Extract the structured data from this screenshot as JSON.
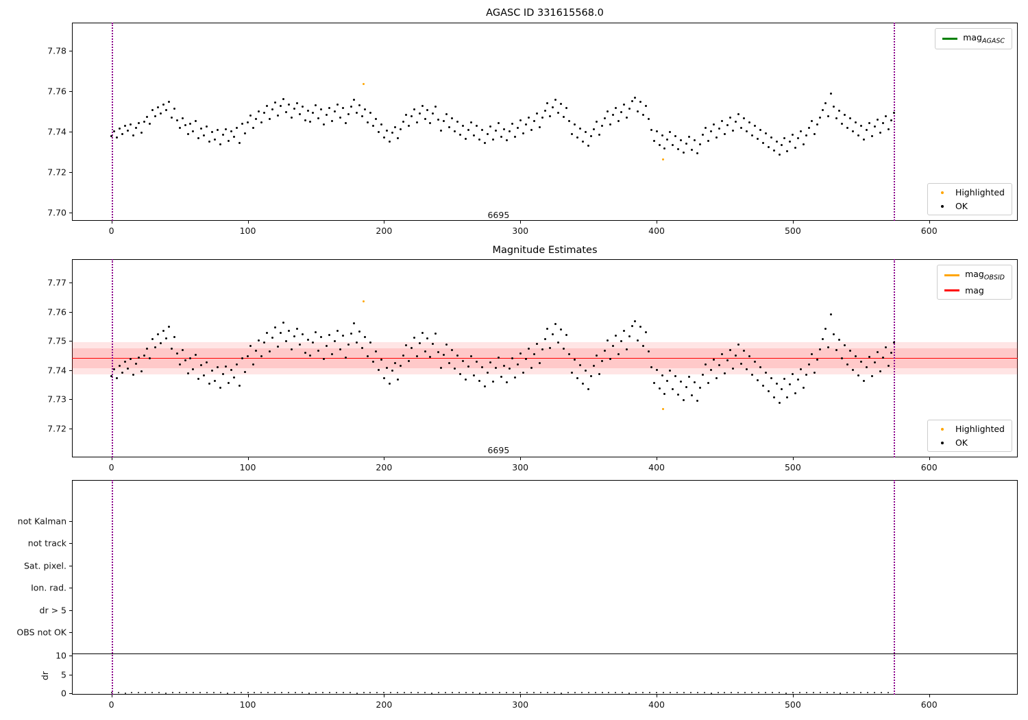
{
  "chart_data": [
    {
      "type": "scatter",
      "title": "AGASC ID 331615568.0",
      "xlim": [
        -29,
        665
      ],
      "ylim": [
        7.696,
        7.794
      ],
      "xticks": [
        0,
        100,
        200,
        300,
        400,
        500,
        600
      ],
      "yticks": [
        7.7,
        7.72,
        7.74,
        7.76,
        7.78
      ],
      "ytick_decimals": 2,
      "vlines": {
        "x": [
          0,
          574
        ],
        "color": "#8b008b",
        "style": "dotted"
      },
      "annotation": {
        "text": "6695",
        "x": 284,
        "y": 7.699
      },
      "series": [
        {
          "name": "OK",
          "marker": "dot",
          "color": "#000000",
          "data": "shared_scatter"
        },
        {
          "name": "Highlighted",
          "marker": "dot",
          "color": "#ffa500",
          "data": "shared_highlighted"
        }
      ],
      "legends": [
        {
          "position": "top-right",
          "items": [
            {
              "swatch": "line",
              "color": "#008000",
              "label": "mag",
              "label_sub": "AGASC"
            }
          ]
        },
        {
          "position": "bottom-right",
          "items": [
            {
              "swatch": "dot",
              "color": "#ffa500",
              "label": "Highlighted"
            },
            {
              "swatch": "dot",
              "color": "#000000",
              "label": "OK"
            }
          ]
        }
      ]
    },
    {
      "type": "scatter",
      "title": "Magnitude Estimates",
      "xlim": [
        -29,
        665
      ],
      "ylim": [
        7.71,
        7.778
      ],
      "xticks": [
        0,
        100,
        200,
        300,
        400,
        500,
        600
      ],
      "yticks": [
        7.72,
        7.73,
        7.74,
        7.75,
        7.76,
        7.77
      ],
      "ytick_decimals": 2,
      "vlines": {
        "x": [
          0,
          574
        ],
        "color": "#8b008b",
        "style": "dotted"
      },
      "annotation": {
        "text": "6695",
        "x": 284,
        "y": 7.7125
      },
      "hline": {
        "value": 7.744,
        "color": "#ff0000"
      },
      "bands": [
        {
          "from": 7.7385,
          "to": 7.7495,
          "color": "rgba(255,0,0,0.10)"
        },
        {
          "from": 7.7405,
          "to": 7.7475,
          "color": "rgba(255,0,0,0.12)"
        }
      ],
      "series": [
        {
          "name": "OK",
          "marker": "dot",
          "color": "#000000",
          "data": "shared_scatter"
        },
        {
          "name": "Highlighted",
          "marker": "dot",
          "color": "#ffa500",
          "data": "shared_highlighted"
        }
      ],
      "legends": [
        {
          "position": "top-right",
          "items": [
            {
              "swatch": "line",
              "color": "#ffa500",
              "label": "mag",
              "label_sub": "OBSID"
            },
            {
              "swatch": "line",
              "color": "#ff0000",
              "label": "mag"
            }
          ]
        },
        {
          "position": "bottom-right",
          "items": [
            {
              "swatch": "dot",
              "color": "#ffa500",
              "label": "Highlighted"
            },
            {
              "swatch": "dot",
              "color": "#000000",
              "label": "OK"
            }
          ]
        }
      ]
    },
    {
      "type": "flags-dr",
      "xlim": [
        -29,
        665
      ],
      "xticks": [
        0,
        100,
        200,
        300,
        400,
        500,
        600
      ],
      "flag_categories": [
        "not Kalman",
        "not track",
        "Sat. pixel.",
        "Ion. rad.",
        "dr > 5",
        "OBS not OK"
      ],
      "vlines": {
        "x": [
          0,
          574
        ],
        "color": "#8b008b",
        "style": "dotted"
      },
      "divider_color": "#000000",
      "dr": {
        "label": "dr",
        "ticks": [
          0,
          5,
          10
        ],
        "points": {
          "x_start": 0,
          "x_step": 5,
          "values": [
            0.12,
            0.18,
            0.09,
            0.22,
            0.15,
            0.11,
            0.19,
            0.14,
            0.08,
            0.21,
            0.16,
            0.12,
            0.24,
            0.1,
            0.17,
            0.13,
            0.2,
            0.09,
            0.15,
            0.22,
            0.11,
            0.18,
            0.14,
            0.25,
            0.1,
            0.16,
            0.21,
            0.12,
            0.19,
            0.08,
            0.23,
            0.14,
            0.17,
            0.11,
            0.2,
            0.15,
            0.09,
            0.22,
            0.13,
            0.18,
            0.24,
            0.1,
            0.16,
            0.12,
            0.21,
            0.14,
            0.19,
            0.09,
            0.15,
            0.23,
            0.11,
            0.17,
            0.13,
            0.2,
            0.08,
            0.16,
            0.22,
            0.12,
            0.18,
            0.1,
            0.24,
            0.14,
            0.19,
            0.11,
            0.15,
            0.21,
            0.09,
            0.17,
            0.13,
            0.23,
            0.1,
            0.18,
            0.14,
            0.2,
            0.12,
            0.16,
            0.08,
            0.22,
            0.15,
            0.11,
            0.19,
            0.13,
            0.24,
            0.1,
            0.17,
            0.21,
            0.12,
            0.18,
            0.09,
            0.15,
            0.23,
            0.11,
            0.16,
            0.14,
            0.2,
            0.1,
            0.22,
            0.13,
            0.18,
            0.08,
            0.24,
            0.15,
            0.11,
            0.19,
            0.12,
            0.17,
            0.21,
            0.09,
            0.14,
            0.23,
            0.1,
            0.16,
            0.2,
            0.12,
            0.18
          ]
        }
      }
    }
  ],
  "shared_scatter": {
    "x_start": 0,
    "x_step": 2,
    "y": [
      7.738,
      7.7402,
      7.7371,
      7.7415,
      7.739,
      7.7428,
      7.7405,
      7.7437,
      7.7383,
      7.7421,
      7.7442,
      7.7396,
      7.745,
      7.7473,
      7.7441,
      7.7506,
      7.7478,
      7.7522,
      7.7491,
      7.7535,
      7.7509,
      7.7548,
      7.7472,
      7.7513,
      7.7456,
      7.7419,
      7.7468,
      7.7432,
      7.7389,
      7.7441,
      7.7403,
      7.7452,
      7.737,
      7.7416,
      7.7381,
      7.7427,
      7.7352,
      7.7398,
      7.7363,
      7.7409,
      7.7338,
      7.7385,
      7.7412,
      7.7356,
      7.7401,
      7.7374,
      7.742,
      7.7345,
      7.7439,
      7.7392,
      7.7446,
      7.7482,
      7.7418,
      7.7465,
      7.7501,
      7.7447,
      7.7493,
      7.7528,
      7.7464,
      7.751,
      7.7545,
      7.7481,
      7.7527,
      7.7563,
      7.7499,
      7.7535,
      7.747,
      7.7516,
      7.7542,
      7.7487,
      7.7523,
      7.7458,
      7.7504,
      7.7449,
      7.7495,
      7.753,
      7.7466,
      7.7512,
      7.7437,
      7.7483,
      7.7519,
      7.7454,
      7.75,
      7.7535,
      7.7471,
      7.7517,
      7.7442,
      7.7488,
      7.7524,
      7.7559,
      7.7495,
      7.7531,
      7.7476,
      7.7512,
      7.7447,
      7.7493,
      7.7428,
      7.7464,
      7.7399,
      7.7435,
      7.7371,
      7.7406,
      7.7352,
      7.7397,
      7.7423,
      7.7368,
      7.7414,
      7.7449,
      7.7485,
      7.743,
      7.7476,
      7.7511,
      7.7447,
      7.7492,
      7.7528,
      7.7463,
      7.7509,
      7.7444,
      7.749,
      7.7525,
      7.7461,
      7.7406,
      7.7452,
      7.7487,
      7.7423,
      7.7468,
      7.7404,
      7.7449,
      7.7385,
      7.743,
      7.7366,
      7.7411,
      7.7447,
      7.7382,
      7.7428,
      7.7363,
      7.7409,
      7.7344,
      7.739,
      7.7425,
      7.7361,
      7.7406,
      7.7442,
      7.7377,
      7.7413,
      7.7358,
      7.7404,
      7.7439,
      7.7375,
      7.742,
      7.7456,
      7.7391,
      7.7437,
      7.7472,
      7.7408,
      7.7453,
      7.7489,
      7.7424,
      7.747,
      7.7505,
      7.7541,
      7.7476,
      7.7522,
      7.7557,
      7.7493,
      7.7538,
      7.7474,
      7.7519,
      7.7455,
      7.739,
      7.7436,
      7.7371,
      7.7417,
      7.7352,
      7.7398,
      7.7333,
      7.7379,
      7.7414,
      7.745,
      7.7385,
      7.7431,
      7.7466,
      7.7502,
      7.7437,
      7.7483,
      7.7518,
      7.7454,
      7.7499,
      7.7535,
      7.747,
      7.7516,
      7.7551,
      7.7567,
      7.7502,
      7.7548,
      7.7483,
      7.7529,
      7.7464,
      7.741,
      7.7355,
      7.7401,
      7.7336,
      7.7382,
      7.7317,
      7.7363,
      7.7398,
      7.7334,
      7.7379,
      7.7315,
      7.736,
      7.7296,
      7.7341,
      7.7377,
      7.7312,
      7.7358,
      7.7293,
      7.7339,
      7.7384,
      7.742,
      7.7355,
      7.7401,
      7.7436,
      7.7372,
      7.7417,
      7.7453,
      7.7388,
      7.7434,
      7.7469,
      7.7405,
      7.745,
      7.7486,
      7.7421,
      7.7467,
      7.7402,
      7.7448,
      7.7383,
      7.7429,
      7.7364,
      7.741,
      7.7345,
      7.7391,
      7.7326,
      7.7372,
      7.7307,
      7.7353,
      7.7288,
      7.7334,
      7.7369,
      7.7305,
      7.735,
      7.7386,
      7.7321,
      7.7367,
      7.7402,
      7.7338,
      7.7383,
      7.7419,
      7.7454,
      7.739,
      7.7435,
      7.7471,
      7.7506,
      7.7542,
      7.7477,
      7.759,
      7.7523,
      7.7468,
      7.7504,
      7.7439,
      7.7485,
      7.742,
      7.7466,
      7.7401,
      7.7447,
      7.7382,
      7.7428,
      7.7363,
      7.7409,
      7.7444,
      7.738,
      7.7425,
      7.7461,
      7.7396,
      7.7442,
      7.7477,
      7.7413,
      7.7458,
      7.7494
    ]
  },
  "shared_highlighted": {
    "points": [
      [
        185,
        7.7635
      ],
      [
        405,
        7.7265
      ]
    ]
  }
}
